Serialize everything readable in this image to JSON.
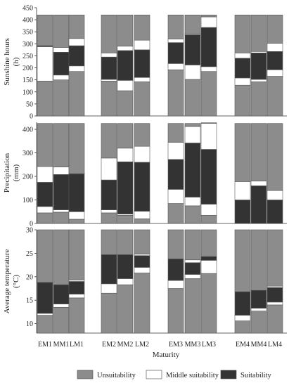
{
  "colors": {
    "unsuitability": "#8c8c8c",
    "middle": "#ffffff",
    "suitability": "#333333",
    "stroke": "#555555"
  },
  "chart_data": {
    "type": "bar",
    "stacked": true,
    "xlabel": "Maturity",
    "categories": [
      "EM1",
      "MM1",
      "LM1",
      "EM2",
      "MM2",
      "LM2",
      "EM3",
      "MM3",
      "LM3",
      "EM4",
      "MM4",
      "LM4"
    ],
    "legend": {
      "placement": "bottom",
      "entries": [
        "Unsuitability",
        "Middle suitability",
        "Suitability"
      ]
    },
    "panels": [
      {
        "ylabel_lines": [
          "Sunshine hours",
          "(h)"
        ],
        "ylim": [
          0,
          450
        ],
        "yticks": [
          0,
          50,
          100,
          150,
          200,
          250,
          300,
          350,
          400,
          450
        ],
        "segments": [
          [
            [
              0,
              145
            ],
            [
              145,
              288
            ],
            [
              288,
              292
            ],
            [
              292,
              420
            ]
          ],
          [
            [
              0,
              150
            ],
            [
              150,
              170
            ],
            [
              170,
              265
            ],
            [
              265,
              285
            ],
            [
              285,
              420
            ]
          ],
          [
            [
              0,
              185
            ],
            [
              185,
              208
            ],
            [
              208,
              292
            ],
            [
              292,
              322
            ],
            [
              322,
              420
            ]
          ],
          [
            [
              0,
              145
            ],
            [
              145,
              152
            ],
            [
              152,
              245
            ],
            [
              245,
              262
            ],
            [
              262,
              420
            ]
          ],
          [
            [
              0,
              105
            ],
            [
              105,
              148
            ],
            [
              148,
              272
            ],
            [
              272,
              290
            ],
            [
              290,
              420
            ]
          ],
          [
            [
              0,
              142
            ],
            [
              142,
              160
            ],
            [
              160,
              275
            ],
            [
              275,
              315
            ],
            [
              315,
              420
            ]
          ],
          [
            [
              0,
              192
            ],
            [
              192,
              218
            ],
            [
              218,
              305
            ],
            [
              305,
              320
            ],
            [
              320,
              420
            ]
          ],
          [
            [
              0,
              152
            ],
            [
              152,
              212
            ],
            [
              212,
              338
            ],
            [
              338,
              342
            ],
            [
              342,
              420
            ]
          ],
          [
            [
              0,
              185
            ],
            [
              185,
              205
            ],
            [
              205,
              368
            ],
            [
              368,
              412
            ],
            [
              412,
              420
            ]
          ],
          [
            [
              0,
              128
            ],
            [
              128,
              158
            ],
            [
              158,
              240
            ],
            [
              240,
              262
            ],
            [
              262,
              420
            ]
          ],
          [
            [
              0,
              142
            ],
            [
              142,
              152
            ],
            [
              152,
              262
            ],
            [
              262,
              268
            ],
            [
              268,
              420
            ]
          ],
          [
            [
              0,
              165
            ],
            [
              165,
              192
            ],
            [
              192,
              268
            ],
            [
              268,
              302
            ],
            [
              302,
              420
            ]
          ]
        ]
      },
      {
        "ylabel_lines": [
          "Precipitation",
          "(mm)"
        ],
        "ylim": [
          0,
          430
        ],
        "yticks": [
          0,
          100,
          200,
          300,
          400
        ],
        "segments": [
          [
            [
              0,
              45
            ],
            [
              45,
              72
            ],
            [
              72,
              175
            ],
            [
              175,
              242
            ],
            [
              242,
              425
            ]
          ],
          [
            [
              0,
              48
            ],
            [
              48,
              58
            ],
            [
              58,
              208
            ],
            [
              208,
              240
            ],
            [
              240,
              425
            ]
          ],
          [
            [
              0,
              18
            ],
            [
              18,
              50
            ],
            [
              50,
              210
            ],
            [
              210,
              212
            ],
            [
              212,
              425
            ]
          ],
          [
            [
              0,
              45
            ],
            [
              45,
              58
            ],
            [
              58,
              185
            ],
            [
              185,
              278
            ],
            [
              278,
              425
            ]
          ],
          [
            [
              0,
              35
            ],
            [
              35,
              40
            ],
            [
              40,
              262
            ],
            [
              262,
              320
            ],
            [
              320,
              425
            ]
          ],
          [
            [
              0,
              20
            ],
            [
              20,
              52
            ],
            [
              52,
              260
            ],
            [
              260,
              328
            ],
            [
              328,
              425
            ]
          ],
          [
            [
              0,
              85
            ],
            [
              85,
              145
            ],
            [
              145,
              272
            ],
            [
              272,
              345
            ],
            [
              345,
              425
            ]
          ],
          [
            [
              0,
              75
            ],
            [
              75,
              112
            ],
            [
              112,
              342
            ],
            [
              342,
              412
            ],
            [
              412,
              425
            ]
          ],
          [
            [
              0,
              35
            ],
            [
              35,
              82
            ],
            [
              82,
              315
            ],
            [
              315,
              425
            ],
            [
              425,
              428
            ]
          ],
          [
            [
              0,
              100
            ],
            [
              100,
              178
            ],
            [
              178,
              425
            ]
          ],
          [
            [
              0,
              160
            ],
            [
              160,
              180
            ],
            [
              180,
              425
            ]
          ],
          [
            [
              0,
              100
            ],
            [
              100,
              140
            ],
            [
              140,
              425
            ]
          ]
        ]
      },
      {
        "ylabel_lines": [
          "Average temperature",
          "(°C)"
        ],
        "ylim": [
          8,
          30
        ],
        "yticks": [
          10,
          15,
          20,
          25,
          30
        ],
        "segments": [
          [
            [
              8,
              11.8
            ],
            [
              11.8,
              12.2
            ],
            [
              12.2,
              18.8
            ],
            [
              18.8,
              30
            ]
          ],
          [
            [
              8,
              13.5
            ],
            [
              13.5,
              14.2
            ],
            [
              14.2,
              18.3
            ],
            [
              18.3,
              30
            ]
          ],
          [
            [
              8,
              15.5
            ],
            [
              15.5,
              16.3
            ],
            [
              16.3,
              19
            ],
            [
              19,
              19.3
            ],
            [
              19.3,
              30
            ]
          ],
          [
            [
              8,
              16.5
            ],
            [
              16.5,
              18.5
            ],
            [
              18.5,
              24.7
            ],
            [
              24.7,
              30
            ]
          ],
          [
            [
              8,
              18.3
            ],
            [
              18.3,
              19.6
            ],
            [
              19.6,
              24.7
            ],
            [
              24.7,
              30
            ]
          ],
          [
            [
              8,
              20.8
            ],
            [
              20.8,
              22
            ],
            [
              22,
              24.5
            ],
            [
              24.5,
              24.8
            ],
            [
              24.8,
              30
            ]
          ],
          [
            [
              8,
              17.5
            ],
            [
              17.5,
              19.2
            ],
            [
              19.2,
              23.8
            ],
            [
              23.8,
              30
            ]
          ],
          [
            [
              8,
              19.6
            ],
            [
              19.6,
              20.5
            ],
            [
              20.5,
              23
            ],
            [
              23,
              23.6
            ],
            [
              23.6,
              30
            ]
          ],
          [
            [
              8,
              20.7
            ],
            [
              20.7,
              23.5
            ],
            [
              23.5,
              24.3
            ],
            [
              24.3,
              30
            ]
          ],
          [
            [
              8,
              10.6
            ],
            [
              10.6,
              11.8
            ],
            [
              11.8,
              16.8
            ],
            [
              16.8,
              30
            ]
          ],
          [
            [
              8,
              12.7
            ],
            [
              12.7,
              13.3
            ],
            [
              13.3,
              17.1
            ],
            [
              17.1,
              30
            ]
          ],
          [
            [
              8,
              14
            ],
            [
              14,
              14.6
            ],
            [
              14.6,
              17.7
            ],
            [
              17.7,
              18
            ],
            [
              18,
              30
            ]
          ]
        ]
      }
    ],
    "segment_classes_note_colors": [
      "unsuitability",
      "middle",
      "suitability",
      "middle",
      "unsuitability"
    ]
  }
}
